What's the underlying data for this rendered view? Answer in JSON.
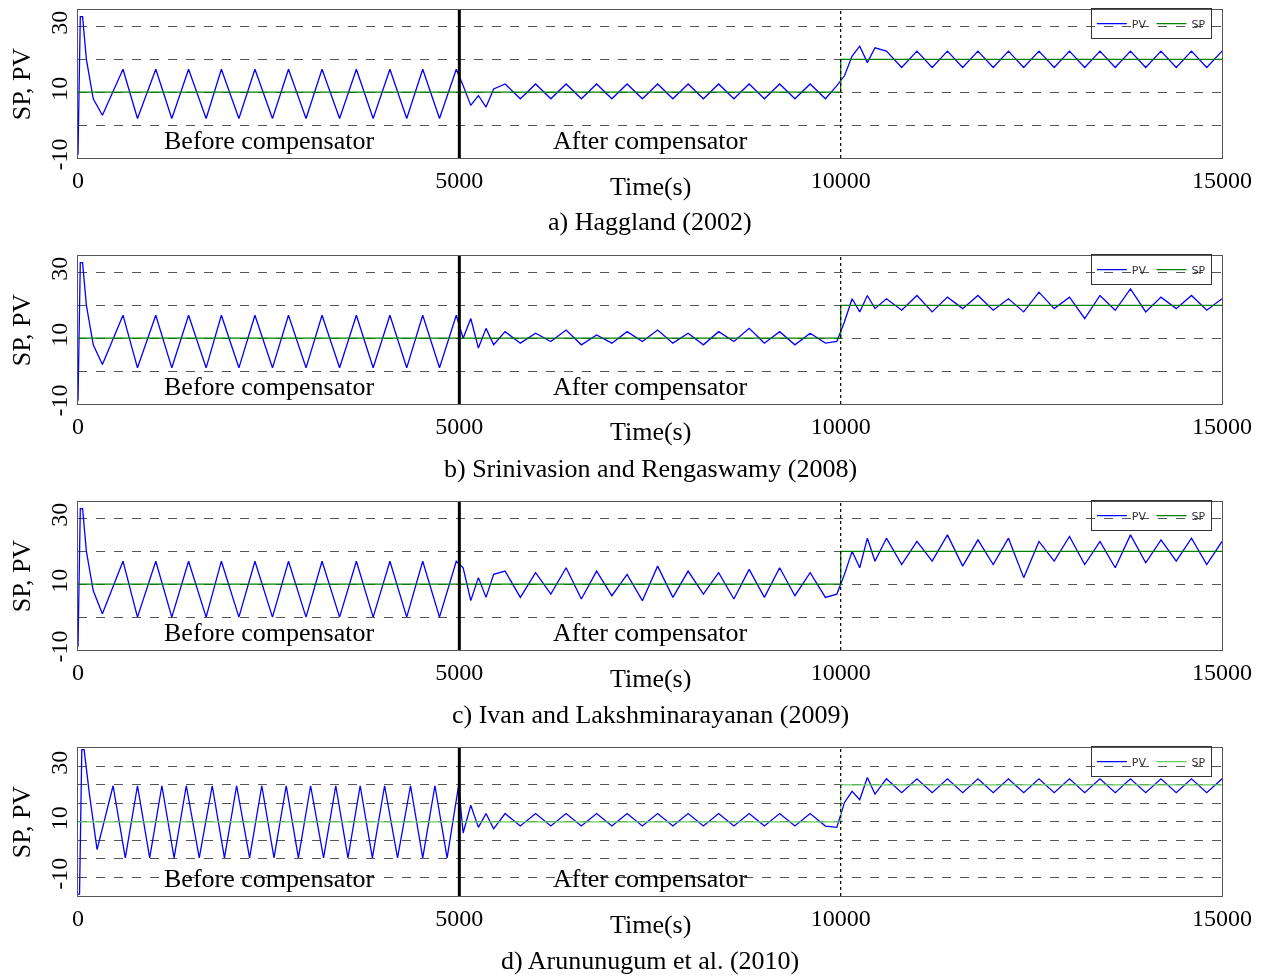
{
  "chart_data": [
    {
      "type": "line",
      "title": "a) Haggland (2002)",
      "xlabel": "Time(s)",
      "ylabel": "SP, PV",
      "xlim": [
        0,
        15000
      ],
      "xticks": [
        0,
        5000,
        10000,
        15000
      ],
      "ylim": [
        -10,
        35
      ],
      "yticks": [
        -10,
        {
          "value": 0,
          "label": null
        },
        10,
        {
          "value": 20,
          "label": null
        },
        30
      ],
      "grid": "y",
      "legend": "top right",
      "annotations": [
        "Before compensator",
        "After compensator"
      ],
      "ref_lines": [
        {
          "axis": "x",
          "value": 5000,
          "color": "#000000",
          "line_style": "solid"
        },
        {
          "axis": "x",
          "value": 10000,
          "color": "#000000",
          "line_style": "dotted"
        }
      ],
      "series": [
        {
          "name": "PV",
          "color": "#0000ff",
          "x": [
            0,
            30,
            60,
            110,
            200,
            320,
            590,
            780,
            1020,
            1230,
            1450,
            1680,
            1880,
            2110,
            2320,
            2550,
            2760,
            2990,
            3200,
            3430,
            3650,
            3870,
            4090,
            4310,
            4520,
            4740,
            4960,
            5050,
            5150,
            5250,
            5350,
            5450,
            5600,
            5800,
            6000,
            6200,
            6400,
            6600,
            6800,
            7000,
            7200,
            7400,
            7600,
            7800,
            8000,
            8200,
            8400,
            8600,
            8800,
            9000,
            9200,
            9400,
            9600,
            9800,
            9950,
            10050,
            10150,
            10250,
            10350,
            10450,
            10600,
            10800,
            11000,
            11200,
            11400,
            11600,
            11800,
            12000,
            12200,
            12400,
            12600,
            12800,
            13000,
            13200,
            13400,
            13600,
            13800,
            14000,
            14200,
            14400,
            14600,
            14800,
            15000
          ],
          "values": [
            -9,
            33,
            33,
            20,
            8,
            3,
            17,
            2,
            17,
            2,
            17,
            2,
            17,
            2,
            17,
            2,
            17,
            2,
            17,
            2,
            17,
            2,
            17,
            2,
            17,
            2,
            17,
            12,
            6,
            9,
            5.5,
            11,
            12.5,
            8,
            12.5,
            8,
            12.5,
            8,
            12.5,
            8,
            12.5,
            8,
            12.5,
            8,
            12.5,
            8,
            12.5,
            8,
            12.5,
            8,
            12.5,
            8,
            12.5,
            8,
            12,
            15,
            21,
            24,
            19,
            23.5,
            22.5,
            17.5,
            22.5,
            17.5,
            22.5,
            17.5,
            22.5,
            17.5,
            22.5,
            17.5,
            22.5,
            17.5,
            22.5,
            17.5,
            22.5,
            17.5,
            22.5,
            17.5,
            22.5,
            17.5,
            22.5,
            17.5,
            22.5
          ]
        },
        {
          "name": "SP",
          "color": "#008000",
          "x": [
            0,
            10000,
            10000,
            15000
          ],
          "values": [
            10,
            10,
            20,
            20
          ]
        }
      ]
    },
    {
      "type": "line",
      "title": "b) Srinivasion and Rengaswamy (2008)",
      "xlabel": "Time(s)",
      "ylabel": "SP, PV",
      "xlim": [
        0,
        15000
      ],
      "xticks": [
        0,
        5000,
        10000,
        15000
      ],
      "ylim": [
        -10,
        35
      ],
      "yticks": [
        -10,
        {
          "value": 0,
          "label": null
        },
        10,
        {
          "value": 20,
          "label": null
        },
        30
      ],
      "grid": "y",
      "legend": "top right",
      "annotations": [
        "Before compensator",
        "After compensator"
      ],
      "ref_lines": [
        {
          "axis": "x",
          "value": 5000,
          "color": "#000000",
          "line_style": "solid"
        },
        {
          "axis": "x",
          "value": 10000,
          "color": "#000000",
          "line_style": "dotted"
        }
      ],
      "series": [
        {
          "name": "PV",
          "color": "#0000ff",
          "x": [
            0,
            30,
            60,
            110,
            200,
            320,
            590,
            780,
            1020,
            1230,
            1450,
            1680,
            1880,
            2110,
            2320,
            2550,
            2760,
            2990,
            3200,
            3430,
            3650,
            3870,
            4090,
            4310,
            4520,
            4740,
            4960,
            5050,
            5150,
            5250,
            5350,
            5450,
            5600,
            5800,
            6000,
            6200,
            6400,
            6600,
            6800,
            7000,
            7200,
            7400,
            7600,
            7800,
            8000,
            8200,
            8400,
            8600,
            8800,
            9000,
            9200,
            9400,
            9600,
            9800,
            9950,
            10050,
            10150,
            10250,
            10350,
            10450,
            10600,
            10800,
            11000,
            11200,
            11400,
            11600,
            11800,
            12000,
            12200,
            12400,
            12600,
            12800,
            13000,
            13200,
            13400,
            13600,
            13800,
            14000,
            14200,
            14400,
            14600,
            14800,
            15000
          ],
          "values": [
            -9,
            33,
            33,
            20,
            8,
            2,
            17,
            1,
            17,
            1,
            17,
            1,
            17,
            1,
            17,
            1,
            17,
            1,
            17,
            1,
            17,
            1,
            17,
            1,
            17,
            1,
            17,
            10,
            16,
            7,
            13,
            8,
            12,
            8.5,
            11.5,
            9,
            12.5,
            8,
            11,
            8.5,
            12,
            9,
            12.5,
            8.5,
            11.5,
            8,
            12,
            9,
            13,
            8.5,
            12,
            8,
            11.5,
            8.5,
            9,
            15,
            22,
            18,
            23,
            19,
            22,
            18.5,
            23,
            18,
            22.5,
            19,
            23,
            18.5,
            22,
            18,
            24,
            19,
            22.5,
            16,
            23,
            18.5,
            25,
            18,
            22.5,
            19,
            23,
            18.5,
            22
          ]
        },
        {
          "name": "SP",
          "color": "#008000",
          "x": [
            0,
            10000,
            10000,
            15000
          ],
          "values": [
            10,
            10,
            20,
            20
          ]
        }
      ]
    },
    {
      "type": "line",
      "title": "c) Ivan and Lakshminarayanan (2009)",
      "xlabel": "Time(s)",
      "ylabel": "SP, PV",
      "xlim": [
        0,
        15000
      ],
      "xticks": [
        0,
        5000,
        10000,
        15000
      ],
      "ylim": [
        -10,
        35
      ],
      "yticks": [
        -10,
        {
          "value": 0,
          "label": null
        },
        10,
        {
          "value": 20,
          "label": null
        },
        30
      ],
      "grid": "y",
      "legend": "top right",
      "annotations": [
        "Before compensator",
        "After compensator"
      ],
      "ref_lines": [
        {
          "axis": "x",
          "value": 5000,
          "color": "#000000",
          "line_style": "solid"
        },
        {
          "axis": "x",
          "value": 10000,
          "color": "#000000",
          "line_style": "dotted"
        }
      ],
      "series": [
        {
          "name": "PV",
          "color": "#0000ff",
          "x": [
            0,
            30,
            60,
            110,
            200,
            320,
            590,
            780,
            1020,
            1230,
            1450,
            1680,
            1880,
            2110,
            2320,
            2550,
            2760,
            2990,
            3200,
            3430,
            3650,
            3870,
            4090,
            4310,
            4520,
            4740,
            4960,
            5050,
            5150,
            5250,
            5350,
            5450,
            5600,
            5800,
            6000,
            6200,
            6400,
            6600,
            6800,
            7000,
            7200,
            7400,
            7600,
            7800,
            8000,
            8200,
            8400,
            8600,
            8800,
            9000,
            9200,
            9400,
            9600,
            9800,
            9950,
            10050,
            10150,
            10250,
            10350,
            10450,
            10600,
            10800,
            11000,
            11200,
            11400,
            11600,
            11800,
            12000,
            12200,
            12400,
            12600,
            12800,
            13000,
            13200,
            13400,
            13600,
            13800,
            14000,
            14200,
            14400,
            14600,
            14800,
            15000
          ],
          "values": [
            -9,
            33,
            33,
            20,
            8,
            1,
            17,
            0,
            17,
            0,
            17,
            0,
            17,
            0,
            17,
            0,
            17,
            0,
            17,
            0,
            17,
            0,
            17,
            0,
            17,
            0,
            17,
            15,
            5,
            12,
            6,
            13,
            14,
            6,
            13.5,
            7,
            15,
            5.5,
            14,
            6.5,
            13,
            5,
            15.5,
            6,
            14,
            7,
            13.5,
            5.5,
            14.5,
            6,
            15,
            6.5,
            13.5,
            6,
            7,
            13,
            20,
            15,
            24,
            17,
            24,
            16,
            23,
            17,
            25,
            15.5,
            23.5,
            16,
            24,
            12,
            23,
            17,
            24.5,
            16,
            23,
            15,
            25,
            16.5,
            23.5,
            17,
            24,
            16,
            23
          ]
        },
        {
          "name": "SP",
          "color": "#008000",
          "x": [
            0,
            10000,
            10000,
            15000
          ],
          "values": [
            10,
            10,
            20,
            20
          ]
        }
      ]
    },
    {
      "type": "line",
      "title": "d) Arununugum et al. (2010)",
      "xlabel": "Time(s)",
      "ylabel": "SP, PV",
      "xlim": [
        0,
        15000
      ],
      "xticks": [
        0,
        5000,
        10000,
        15000
      ],
      "ylim": [
        -16.7,
        36.6
      ],
      "yticks": [
        -10,
        {
          "value": -3.3,
          "label": null
        },
        {
          "value": 3.3,
          "label": null
        },
        10,
        {
          "value": 16.7,
          "label": null
        },
        {
          "value": 23.3,
          "label": null
        },
        30
      ],
      "grid": "y",
      "legend": "top right",
      "annotations": [
        "Before compensator",
        "After compensator"
      ],
      "ref_lines": [
        {
          "axis": "x",
          "value": 5000,
          "color": "#000000",
          "line_style": "solid"
        },
        {
          "axis": "x",
          "value": 10000,
          "color": "#000000",
          "line_style": "dotted"
        }
      ],
      "series": [
        {
          "name": "PV",
          "color": "#0000ff",
          "x": [
            0,
            20,
            50,
            80,
            150,
            250,
            460,
            620,
            780,
            940,
            1100,
            1260,
            1420,
            1590,
            1760,
            1920,
            2080,
            2250,
            2410,
            2570,
            2730,
            2890,
            3050,
            3220,
            3380,
            3540,
            3700,
            3860,
            4020,
            4190,
            4360,
            4520,
            4680,
            4840,
            4990,
            5050,
            5150,
            5250,
            5350,
            5450,
            5600,
            5800,
            6000,
            6200,
            6400,
            6600,
            6800,
            7000,
            7200,
            7400,
            7600,
            7800,
            8000,
            8200,
            8400,
            8600,
            8800,
            9000,
            9200,
            9400,
            9600,
            9800,
            9950,
            10050,
            10150,
            10250,
            10350,
            10450,
            10600,
            10800,
            11000,
            11200,
            11400,
            11600,
            11800,
            12000,
            12200,
            12400,
            12600,
            12800,
            13000,
            13200,
            13400,
            13600,
            13800,
            14000,
            14200,
            14400,
            14600,
            14800,
            15000
          ],
          "values": [
            -16,
            -16,
            36,
            36,
            20,
            0,
            23,
            -3,
            23,
            -3,
            23,
            -3,
            23,
            -3,
            23,
            -3,
            23,
            -3,
            23,
            -3,
            23,
            -3,
            23,
            -3,
            23,
            -3,
            23,
            -3,
            23,
            -3,
            23,
            -3,
            23,
            -3,
            23,
            6,
            16,
            8,
            13,
            7.5,
            13,
            8.5,
            13,
            8.5,
            13,
            8.5,
            13,
            8.5,
            13,
            8.5,
            13,
            8.5,
            13,
            8.5,
            13,
            8.5,
            13,
            8.5,
            13,
            8.5,
            13,
            8.5,
            8,
            17,
            21,
            18,
            26,
            20,
            25.5,
            20.5,
            25.5,
            20.5,
            25.5,
            20.5,
            25.5,
            20.5,
            25.5,
            20.5,
            25.5,
            20.5,
            25.5,
            20.5,
            25.5,
            20.5,
            25.5,
            20.5,
            25.5,
            20.5,
            25.5,
            20.5,
            25.5
          ]
        },
        {
          "name": "SP",
          "color": "#66cc66",
          "x": [
            0,
            10000,
            10000,
            15000
          ],
          "values": [
            10,
            10,
            23.3,
            23.3
          ]
        }
      ]
    }
  ]
}
